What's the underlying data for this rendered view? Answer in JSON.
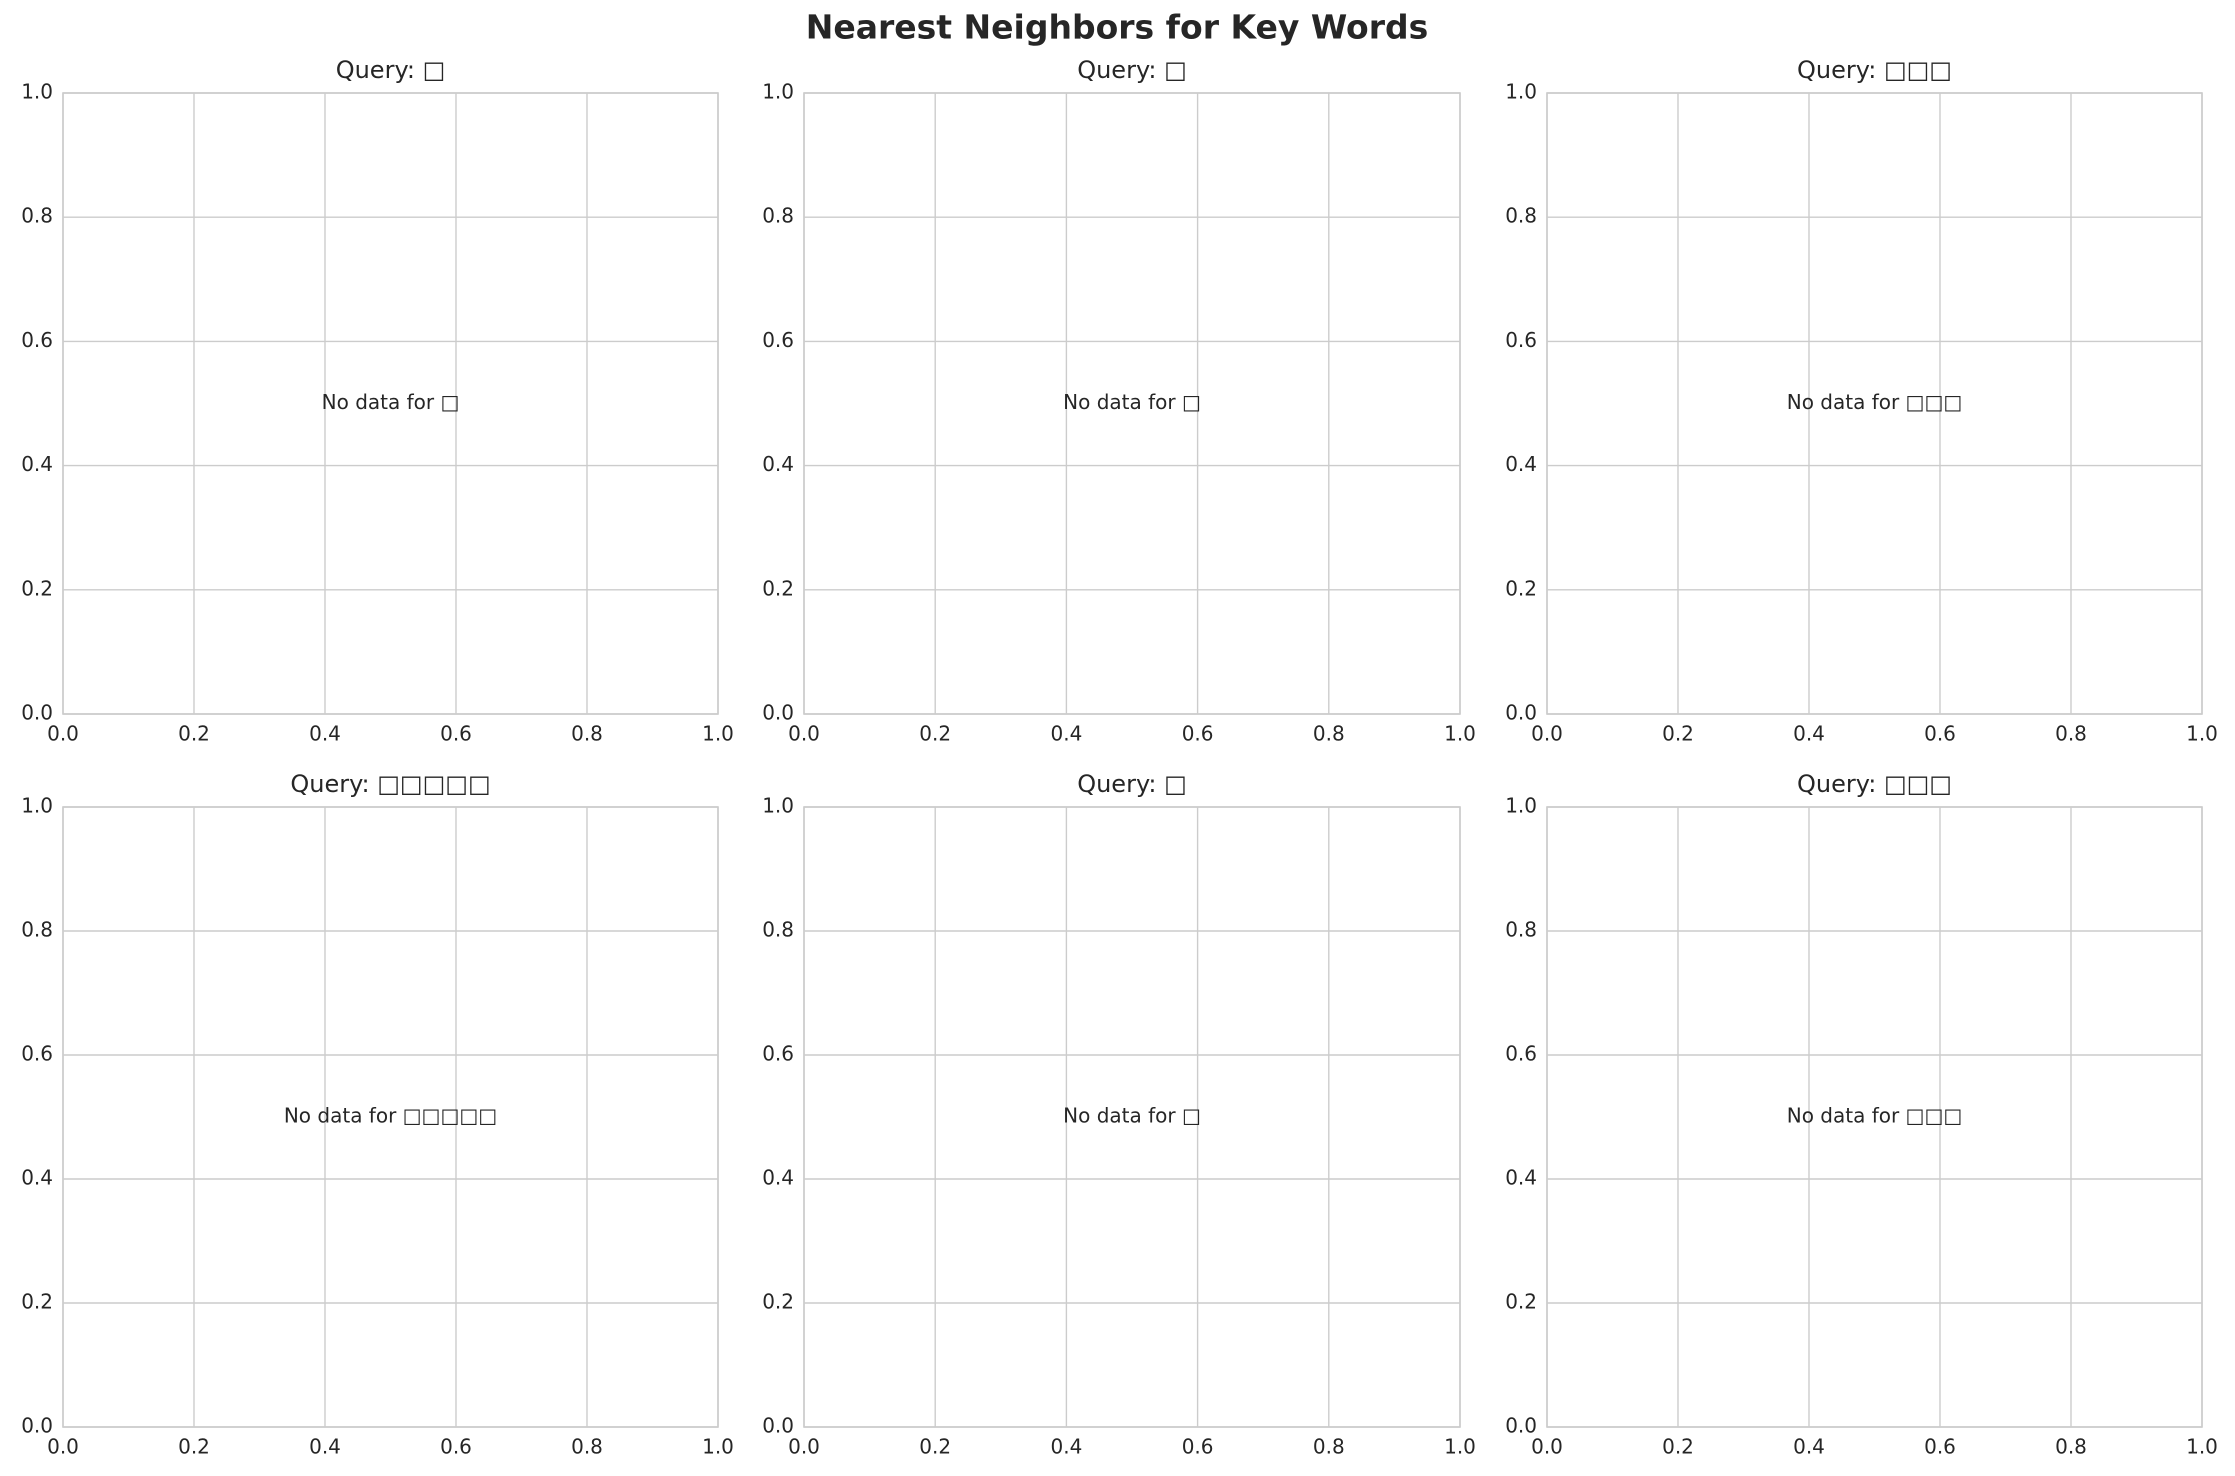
{
  "title": "Nearest Neighbors for Key Words",
  "chart_data": [
    {
      "type": "scatter",
      "title": "Query: □",
      "annotation": "No data for □",
      "xlim": [
        0,
        1
      ],
      "ylim": [
        0,
        1
      ],
      "xticks": [
        {
          "value": 0,
          "label": "0.0"
        },
        0.2,
        0.4,
        0.6,
        0.8,
        {
          "value": 1,
          "label": "1.0"
        }
      ],
      "yticks": [
        {
          "value": 0,
          "label": "0.0"
        },
        0.2,
        0.4,
        0.6,
        0.8,
        {
          "value": 1,
          "label": "1.0"
        }
      ],
      "grid": true
    },
    {
      "type": "scatter",
      "title": "Query: □",
      "annotation": "No data for □",
      "xlim": [
        0,
        1
      ],
      "ylim": [
        0,
        1
      ],
      "xticks": [
        {
          "value": 0,
          "label": "0.0"
        },
        0.2,
        0.4,
        0.6,
        0.8,
        {
          "value": 1,
          "label": "1.0"
        }
      ],
      "yticks": [
        {
          "value": 0,
          "label": "0.0"
        },
        0.2,
        0.4,
        0.6,
        0.8,
        {
          "value": 1,
          "label": "1.0"
        }
      ],
      "grid": true
    },
    {
      "type": "scatter",
      "title": "Query: □□□",
      "annotation": "No data for □□□",
      "xlim": [
        0,
        1
      ],
      "ylim": [
        0,
        1
      ],
      "xticks": [
        {
          "value": 0,
          "label": "0.0"
        },
        0.2,
        0.4,
        0.6,
        0.8,
        {
          "value": 1,
          "label": "1.0"
        }
      ],
      "yticks": [
        {
          "value": 0,
          "label": "0.0"
        },
        0.2,
        0.4,
        0.6,
        0.8,
        {
          "value": 1,
          "label": "1.0"
        }
      ],
      "grid": true
    },
    {
      "type": "scatter",
      "title": "Query: □□□□□",
      "annotation": "No data for □□□□□",
      "xlim": [
        0,
        1
      ],
      "ylim": [
        0,
        1
      ],
      "xticks": [
        {
          "value": 0,
          "label": "0.0"
        },
        0.2,
        0.4,
        0.6,
        0.8,
        {
          "value": 1,
          "label": "1.0"
        }
      ],
      "yticks": [
        {
          "value": 0,
          "label": "0.0"
        },
        0.2,
        0.4,
        0.6,
        0.8,
        {
          "value": 1,
          "label": "1.0"
        }
      ],
      "grid": true
    },
    {
      "type": "scatter",
      "title": "Query: □",
      "annotation": "No data for □",
      "xlim": [
        0,
        1
      ],
      "ylim": [
        0,
        1
      ],
      "xticks": [
        {
          "value": 0,
          "label": "0.0"
        },
        0.2,
        0.4,
        0.6,
        0.8,
        {
          "value": 1,
          "label": "1.0"
        }
      ],
      "yticks": [
        {
          "value": 0,
          "label": "0.0"
        },
        0.2,
        0.4,
        0.6,
        0.8,
        {
          "value": 1,
          "label": "1.0"
        }
      ],
      "grid": true
    },
    {
      "type": "scatter",
      "title": "Query: □□□",
      "annotation": "No data for □□□",
      "xlim": [
        0,
        1
      ],
      "ylim": [
        0,
        1
      ],
      "xticks": [
        {
          "value": 0,
          "label": "0.0"
        },
        0.2,
        0.4,
        0.6,
        0.8,
        {
          "value": 1,
          "label": "1.0"
        }
      ],
      "yticks": [
        {
          "value": 0,
          "label": "0.0"
        },
        0.2,
        0.4,
        0.6,
        0.8,
        {
          "value": 1,
          "label": "1.0"
        }
      ],
      "grid": true
    }
  ]
}
